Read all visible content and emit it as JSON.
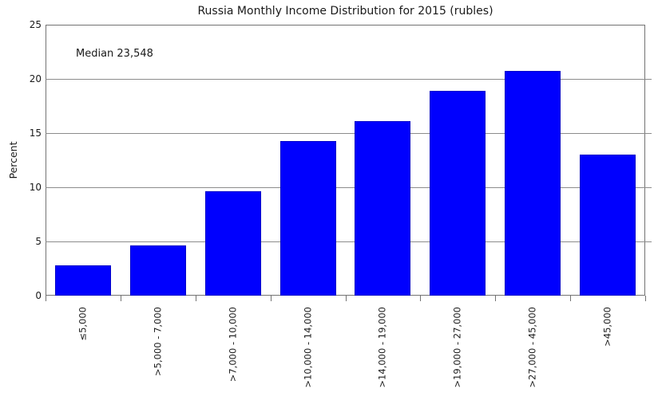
{
  "chart_data": {
    "type": "bar",
    "title": "Russia Monthly Income Distribution for 2015 (rubles)",
    "annotation": "Median 23,548",
    "xlabel": "",
    "ylabel": "Percent",
    "categories": [
      "≤5,000",
      ">5,000 - 7,000",
      ">7,000 - 10,000",
      ">10,000 - 14,000",
      ">14,000 - 19,000",
      ">19,000 - 27,000",
      ">27,000 - 45,000",
      ">45,000"
    ],
    "values": [
      2.8,
      4.6,
      9.6,
      14.3,
      16.1,
      18.9,
      20.7,
      13.0
    ],
    "ylim": [
      0,
      25
    ],
    "yticks": [
      0,
      5,
      10,
      15,
      20,
      25
    ],
    "grid": "horizontal",
    "legend": "none",
    "bar_color": "#0000fe",
    "bar_edge_color": "#0000c8",
    "grid_color": "#8c8c8c",
    "frame_color": "#737373",
    "text_color": "#1a1a1a"
  }
}
